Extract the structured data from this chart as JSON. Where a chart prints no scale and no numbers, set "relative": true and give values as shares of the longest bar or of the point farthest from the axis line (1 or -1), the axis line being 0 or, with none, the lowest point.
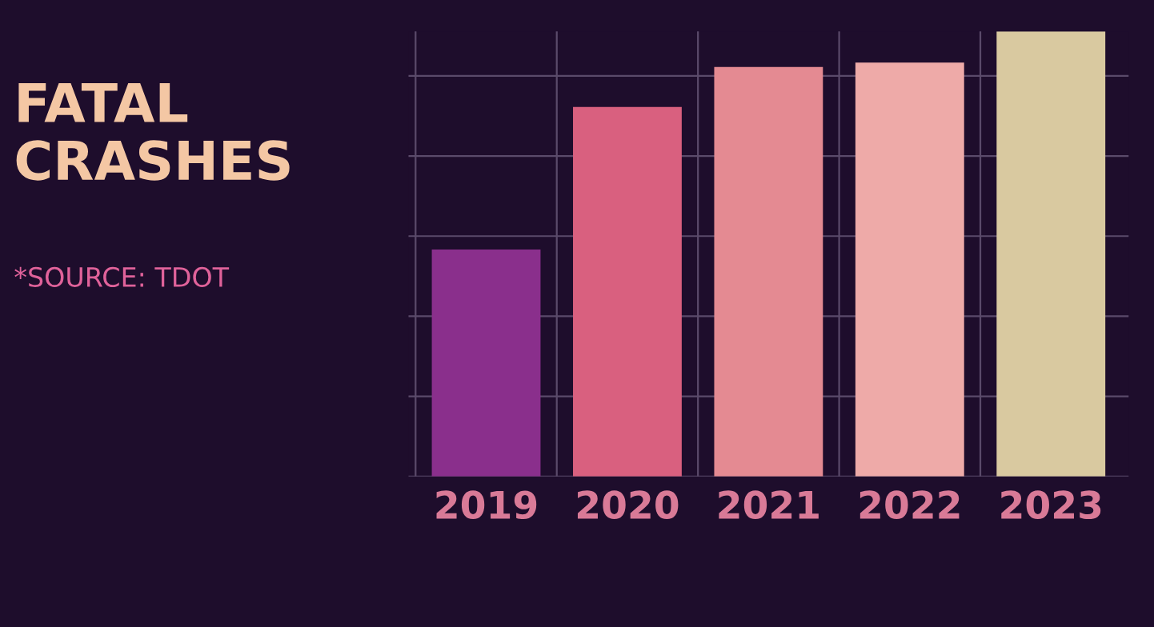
{
  "chart_data": {
    "type": "bar",
    "title": "FATAL CRASHES",
    "annotations": [
      "*SOURCE: TDOT"
    ],
    "categories": [
      "2019",
      "2020",
      "2021",
      "2022",
      "2023"
    ],
    "values": [
      0.51,
      0.83,
      0.92,
      0.93,
      1
    ],
    "colors": [
      "#8a2f8c",
      "#d9607f",
      "#e48a92",
      "#eeaaa8",
      "#d9c9a0"
    ],
    "relative": true,
    "grid": true
  }
}
